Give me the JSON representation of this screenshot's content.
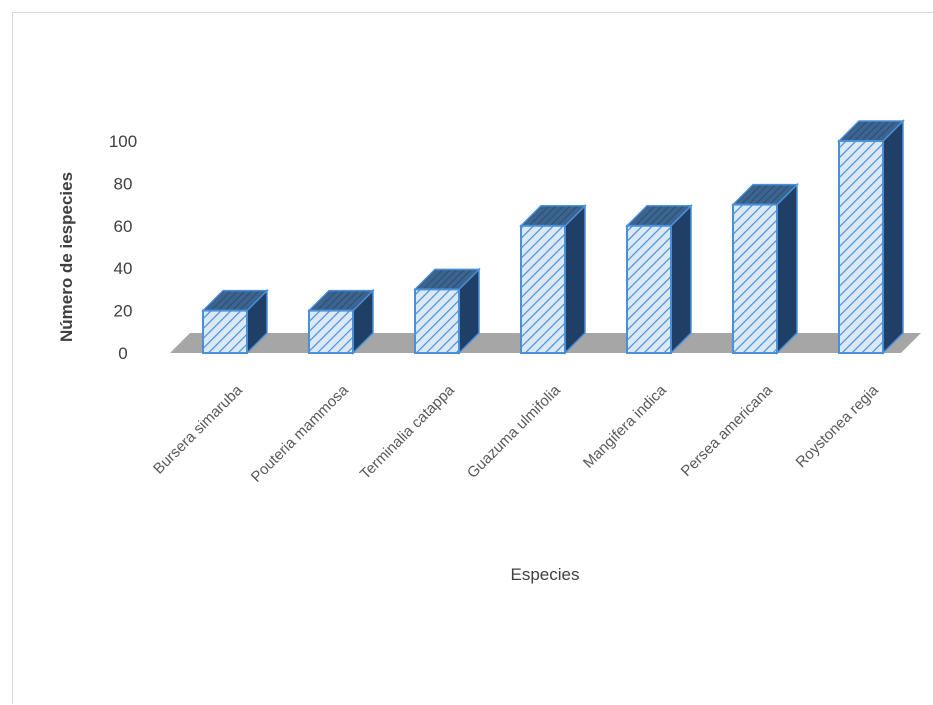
{
  "chart_data": {
    "type": "bar",
    "style": "3d-column",
    "categories": [
      "Bursera simaruba",
      "Pouteria mammosa",
      "Terminalia catappa",
      "Guazuma  ulmifolia",
      "Mangifera  indica",
      "Persea americana",
      "Roystonea regia"
    ],
    "values": [
      20,
      20,
      30,
      60,
      60,
      70,
      100
    ],
    "title": "",
    "xlabel": "Especies",
    "ylabel": "Número de  iespecies",
    "ylim": [
      0,
      100
    ],
    "yticks": [
      0,
      20,
      40,
      60,
      80,
      100
    ],
    "grid": false,
    "colors": {
      "bar_fill": "#dbe9f7",
      "bar_stroke": "#4a90d9",
      "bar_hatch": "#4a90d9",
      "bar_side": "#1f3f66",
      "bar_top": "#3c648f",
      "floor": "#a6a6a6"
    }
  }
}
